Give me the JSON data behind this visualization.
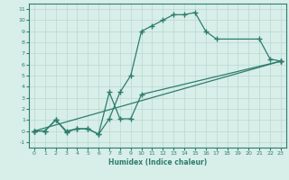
{
  "xlabel": "Humidex (Indice chaleur)",
  "xlim": [
    -0.5,
    23.5
  ],
  "ylim": [
    -1.5,
    11.5
  ],
  "line_color": "#2d7d6e",
  "bg_color": "#d8eee8",
  "grid_color": "#b8d8d0",
  "line1_x": [
    0,
    1,
    2,
    3,
    4,
    5,
    6,
    7,
    8,
    9,
    10,
    11,
    12,
    13,
    14,
    15,
    16,
    17,
    21,
    22,
    23
  ],
  "line1_y": [
    0,
    0,
    1,
    0,
    0.2,
    0.2,
    -0.3,
    1.1,
    3.5,
    5.0,
    9.0,
    9.5,
    10.0,
    10.5,
    10.5,
    10.7,
    9.0,
    8.3,
    8.3,
    6.5,
    6.3
  ],
  "line2_x": [
    0,
    1,
    2,
    3,
    4,
    5,
    6,
    7,
    8,
    9,
    10,
    23
  ],
  "line2_y": [
    0,
    0,
    1,
    -0.1,
    0.2,
    0.2,
    -0.3,
    3.5,
    1.1,
    1.1,
    3.3,
    6.3
  ],
  "line3_x": [
    0,
    23
  ],
  "line3_y": [
    0,
    6.3
  ]
}
